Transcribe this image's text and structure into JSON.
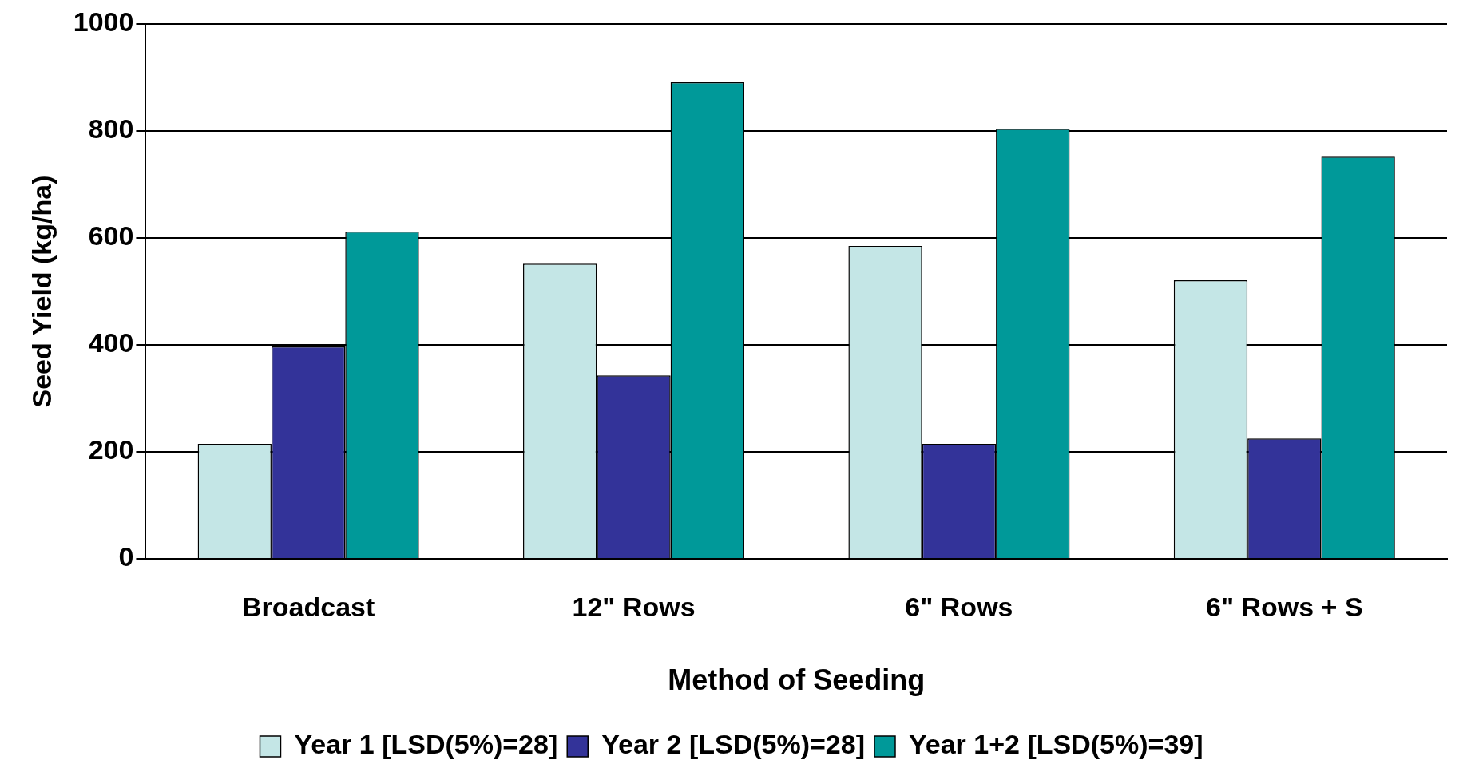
{
  "chart_data": {
    "type": "bar",
    "xlabel": "Method of Seeding",
    "ylabel": "Seed Yield (kg/ha)",
    "categories": [
      "Broadcast",
      "12\" Rows",
      "6\" Rows",
      "6\" Rows + S"
    ],
    "series": [
      {
        "name": "Year 1 [LSD(5%)=28]",
        "color": "#c4e6e6",
        "values": [
          215,
          552,
          585,
          521
        ]
      },
      {
        "name": "Year 2 [LSD(5%)=28]",
        "color": "#333399",
        "values": [
          397,
          343,
          215,
          225
        ]
      },
      {
        "name": "Year 1+2 [LSD(5%)=39]",
        "color": "#009999",
        "values": [
          612,
          891,
          804,
          752
        ]
      }
    ],
    "ylim": [
      0,
      1000
    ],
    "yticks": [
      0,
      200,
      400,
      600,
      800,
      1000
    ],
    "grid": "y",
    "legend": "bottom"
  }
}
